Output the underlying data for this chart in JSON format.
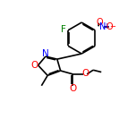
{
  "bg_color": "#ffffff",
  "atom_colors": {
    "C": "#000000",
    "N": "#0000ff",
    "O": "#ff0000",
    "F": "#008000",
    "H": "#000000"
  },
  "bond_color": "#000000",
  "bond_width": 1.2,
  "figsize": [
    1.52,
    1.52
  ],
  "dpi": 100,
  "xlim": [
    0,
    10
  ],
  "ylim": [
    0,
    10
  ]
}
